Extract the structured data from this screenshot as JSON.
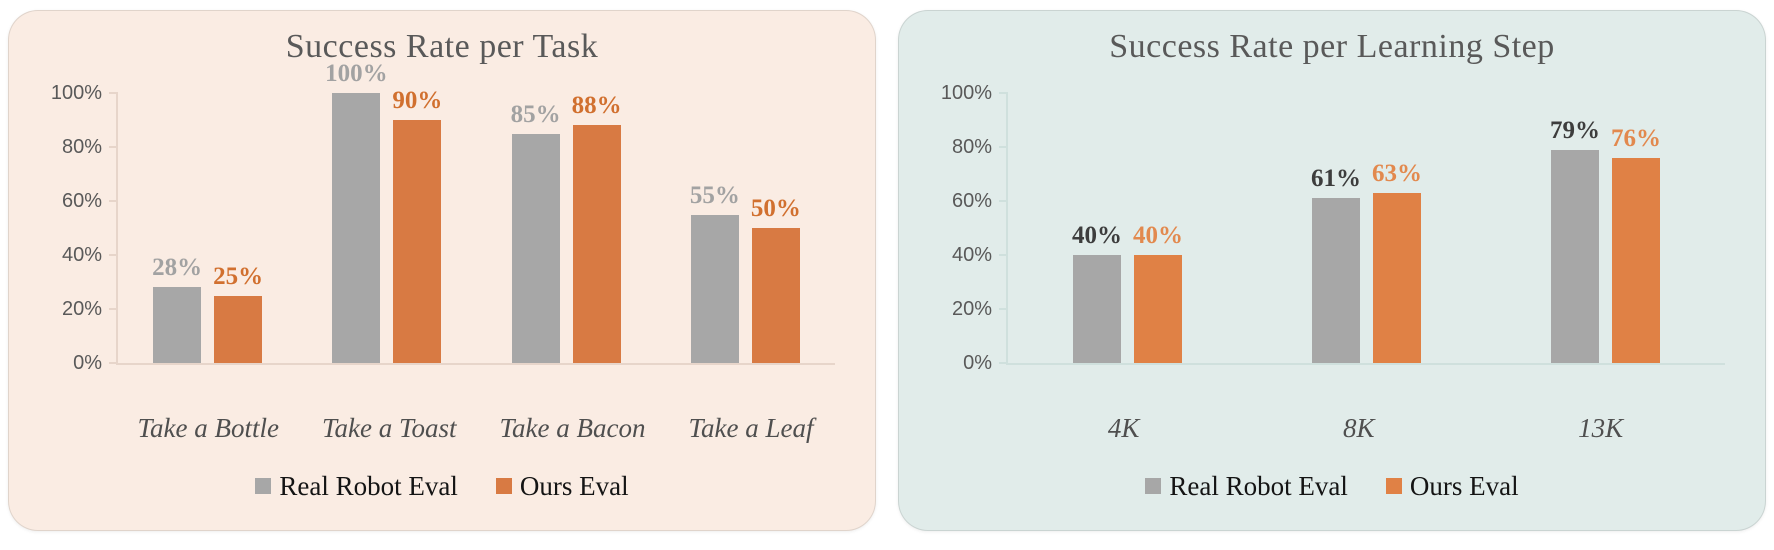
{
  "page": {
    "background": "#ffffff"
  },
  "chart_data": [
    {
      "type": "bar",
      "title": "Success Rate per Task",
      "title_color": "#595959",
      "card_background": "#faece3",
      "axis_color": "#e7d5ca",
      "tick_label_color": "#595959",
      "category_label_color": "#4f4f4f",
      "legend_text_color": "#141414",
      "categories": [
        "Take a Bottle",
        "Take a Toast",
        "Take a Bacon",
        "Take a Leaf"
      ],
      "series": [
        {
          "name": "Real Robot Eval",
          "values": [
            28,
            100,
            85,
            55
          ],
          "data_labels": [
            "28%",
            "100%",
            "85%",
            "55%"
          ],
          "bar_color": "#a7a7a7",
          "label_color": "#a2a2a2"
        },
        {
          "name": "Ours Eval",
          "values": [
            25,
            90,
            88,
            50
          ],
          "data_labels": [
            "25%",
            "90%",
            "88%",
            "50%"
          ],
          "bar_color": "#d87a43",
          "label_color": "#d1702f"
        }
      ],
      "y_ticks": [
        {
          "value": 0,
          "label": "0%"
        },
        {
          "value": 20,
          "label": "20%"
        },
        {
          "value": 40,
          "label": "40%"
        },
        {
          "value": 60,
          "label": "60%"
        },
        {
          "value": 80,
          "label": "80%"
        },
        {
          "value": 100,
          "label": "100%"
        }
      ],
      "ylim": [
        0,
        100
      ],
      "xlabel": "",
      "ylabel": "",
      "grid": false,
      "legend_position": "bottom",
      "legend": [
        "Real Robot Eval",
        "Ours Eval"
      ]
    },
    {
      "type": "bar",
      "title": "Success Rate per Learning Step",
      "title_color": "#595959",
      "card_background": "#e1ecea",
      "axis_color": "#cfe0dd",
      "tick_label_color": "#595959",
      "category_label_color": "#4f4f4f",
      "legend_text_color": "#141414",
      "categories": [
        "4K",
        "8K",
        "13K"
      ],
      "series": [
        {
          "name": "Real Robot Eval",
          "values": [
            40,
            61,
            79
          ],
          "data_labels": [
            "40%",
            "61%",
            "79%"
          ],
          "bar_color": "#a7a7a7",
          "label_color": "#3d3d3d"
        },
        {
          "name": "Ours Eval",
          "values": [
            40,
            63,
            76
          ],
          "data_labels": [
            "40%",
            "63%",
            "76%"
          ],
          "bar_color": "#e08145",
          "label_color": "#e2894e"
        }
      ],
      "y_ticks": [
        {
          "value": 0,
          "label": "0%"
        },
        {
          "value": 20,
          "label": "20%"
        },
        {
          "value": 40,
          "label": "40%"
        },
        {
          "value": 60,
          "label": "60%"
        },
        {
          "value": 80,
          "label": "80%"
        },
        {
          "value": 100,
          "label": "100%"
        }
      ],
      "ylim": [
        0,
        100
      ],
      "xlabel": "",
      "ylabel": "",
      "grid": false,
      "legend_position": "bottom",
      "legend": [
        "Real Robot Eval",
        "Ours Eval"
      ]
    }
  ]
}
